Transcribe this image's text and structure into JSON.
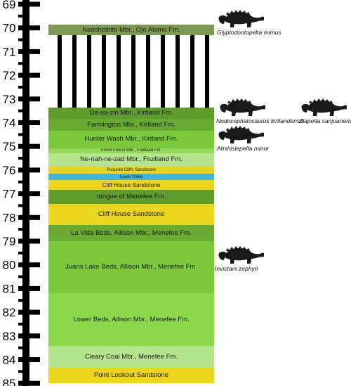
{
  "scale": {
    "ticks": [
      "69",
      "70",
      "71",
      "72",
      "73",
      "74",
      "75",
      "76",
      "77",
      "78",
      "79",
      "80",
      "81",
      "82",
      "83",
      "84",
      "85"
    ]
  },
  "units": [
    {
      "label": "Naashoibito Mbr., Ojo Alamo Fm.",
      "top": 69.86,
      "bottom": 70.32,
      "color": "#7a9a52"
    },
    {
      "label": "De-na-zin Mbr., Kirtland Fm.",
      "top": 73.35,
      "bottom": 73.84,
      "color": "#5e9c2e"
    },
    {
      "label": "Farmington Mbr., Kirtland Fm.",
      "top": 73.84,
      "bottom": 74.33,
      "color": "#6aaa33"
    },
    {
      "label": "Hunter Wash Mbr., Kirtland Fm.",
      "top": 74.33,
      "bottom": 75.08,
      "color": "#7cc93c"
    },
    {
      "label": "Fossil Forest Mbr., Fruitland Fm.",
      "top": 75.08,
      "bottom": 75.28,
      "color": "#93d857"
    },
    {
      "label": "Ne-nah-ne-zad Mbr., Fruitland Fm.",
      "top": 75.28,
      "bottom": 75.85,
      "color": "#b4e58e"
    },
    {
      "label": "Pictured Cliffs Sandstone",
      "top": 75.85,
      "bottom": 76.15,
      "color": "#ecd51f"
    },
    {
      "label": "Lewis Shale",
      "top": 76.15,
      "bottom": 76.42,
      "color": "#3cb6e6"
    },
    {
      "label": "Cliff House Sandstone",
      "top": 76.42,
      "bottom": 76.82,
      "color": "#ecd51f"
    },
    {
      "label": "tongue of Menefee Fm.",
      "top": 76.82,
      "bottom": 77.42,
      "color": "#5e9c2e"
    },
    {
      "label": "Cliff House Sandstone",
      "top": 77.42,
      "bottom": 78.32,
      "color": "#ecd51f"
    },
    {
      "label": "La Vida Beds, Allison Mbr., Menefee Fm.",
      "top": 78.32,
      "bottom": 79.0,
      "color": "#6aaa33"
    },
    {
      "label": "Juans Lake Beds, Allison Mbr., Menefee Fm.",
      "top": 79.0,
      "bottom": 81.2,
      "color": "#7cc93c"
    },
    {
      "label": "Lower Beds, Allison Mbr., Menefee Fm.",
      "top": 81.2,
      "bottom": 83.42,
      "color": "#8bd84a"
    },
    {
      "label": "Cleary Coal Mbr., Menefee Fm.",
      "top": 83.42,
      "bottom": 84.33,
      "color": "#b4e58e"
    },
    {
      "label": "Point Lookout Sandstone",
      "top": 84.33,
      "bottom": 85.0,
      "color": "#ecd51f"
    }
  ],
  "hiatus": {
    "top": 70.32,
    "bottom": 73.35,
    "bar_count": 11
  },
  "taxa": [
    {
      "name": "Glyptodontopelta mimus",
      "level": 69.95
    },
    {
      "name": "Nodocephalosaurus kirtlandensis",
      "level": 73.7
    },
    {
      "name": "Ziapelta sanjuanensis",
      "level": 73.7
    },
    {
      "name": "Ahshislepelta minor",
      "level": 74.85
    },
    {
      "name": "Invictarx zephyri",
      "level": 79.92
    }
  ],
  "colors": {
    "silhouette": "#1a1a1a",
    "scale": "#000000"
  }
}
